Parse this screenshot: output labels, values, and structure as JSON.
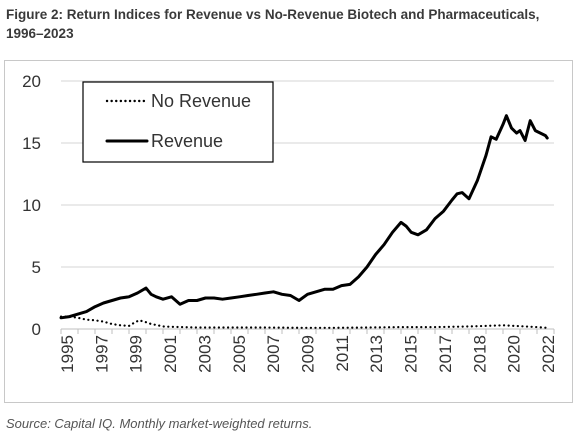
{
  "figure": {
    "title": "Figure 2: Return Indices for Revenue vs No-Revenue Biotech and Pharmaceuticals, 1996–2023",
    "source": "Source: Capital IQ. Monthly market-weighted returns."
  },
  "chart_data": {
    "type": "line",
    "title": "",
    "xlabel": "",
    "ylabel": "",
    "xlim": [
      1995,
      2024
    ],
    "ylim": [
      0,
      20
    ],
    "grid": "horizontal",
    "legend_position": "top-left",
    "y_ticks": [
      "0",
      "5",
      "10",
      "15",
      "20"
    ],
    "x_ticks": [
      "1995",
      "1997",
      "1999",
      "2001",
      "2003",
      "2005",
      "2007",
      "2009",
      "2011",
      "2013",
      "2015",
      "2017",
      "2018",
      "2020",
      "2022"
    ],
    "series": [
      {
        "name": "No Revenue",
        "style": "dotted",
        "color": "#000000",
        "x": [
          1995.0,
          1995.5,
          1996.0,
          1996.5,
          1997.0,
          1997.5,
          1998.0,
          1998.5,
          1999.0,
          1999.3,
          1999.6,
          2000.0,
          2000.3,
          2000.7,
          2001.0,
          2002.0,
          2003.0,
          2005.0,
          2007.0,
          2009.0,
          2011.0,
          2013.0,
          2015.0,
          2017.0,
          2019.0,
          2021.0,
          2023.0,
          2023.6
        ],
        "y": [
          1.0,
          1.0,
          0.9,
          0.75,
          0.7,
          0.6,
          0.4,
          0.3,
          0.25,
          0.5,
          0.7,
          0.55,
          0.4,
          0.3,
          0.2,
          0.15,
          0.12,
          0.12,
          0.12,
          0.1,
          0.1,
          0.12,
          0.15,
          0.15,
          0.2,
          0.3,
          0.15,
          0.1
        ]
      },
      {
        "name": "Revenue",
        "style": "solid",
        "color": "#000000",
        "x": [
          1995.0,
          1995.5,
          1996.0,
          1996.5,
          1997.0,
          1997.5,
          1998.0,
          1998.5,
          1999.0,
          1999.5,
          2000.0,
          2000.3,
          2000.6,
          2001.0,
          2001.5,
          2002.0,
          2002.5,
          2003.0,
          2003.5,
          2004.0,
          2004.5,
          2005.0,
          2005.5,
          2006.0,
          2006.5,
          2007.0,
          2007.5,
          2008.0,
          2008.5,
          2009.0,
          2009.5,
          2010.0,
          2010.5,
          2011.0,
          2011.5,
          2012.0,
          2012.5,
          2013.0,
          2013.5,
          2014.0,
          2014.5,
          2015.0,
          2015.3,
          2015.6,
          2016.0,
          2016.5,
          2017.0,
          2017.5,
          2018.0,
          2018.3,
          2018.6,
          2019.0,
          2019.5,
          2020.0,
          2020.3,
          2020.6,
          2021.0,
          2021.2,
          2021.5,
          2021.8,
          2022.0,
          2022.3,
          2022.6,
          2022.9,
          2023.2,
          2023.5,
          2023.6
        ],
        "y": [
          0.9,
          1.0,
          1.2,
          1.4,
          1.8,
          2.1,
          2.3,
          2.5,
          2.6,
          2.9,
          3.3,
          2.8,
          2.6,
          2.4,
          2.6,
          2.0,
          2.3,
          2.3,
          2.5,
          2.5,
          2.4,
          2.5,
          2.6,
          2.7,
          2.8,
          2.9,
          3.0,
          2.8,
          2.7,
          2.3,
          2.8,
          3.0,
          3.2,
          3.2,
          3.5,
          3.6,
          4.2,
          5.0,
          6.0,
          6.8,
          7.8,
          8.6,
          8.3,
          7.8,
          7.6,
          8.0,
          8.9,
          9.5,
          10.4,
          10.9,
          11.0,
          10.5,
          12.0,
          14.0,
          15.5,
          15.3,
          16.5,
          17.2,
          16.2,
          15.8,
          16.0,
          15.2,
          16.8,
          16.0,
          15.8,
          15.6,
          15.4
        ]
      }
    ]
  }
}
